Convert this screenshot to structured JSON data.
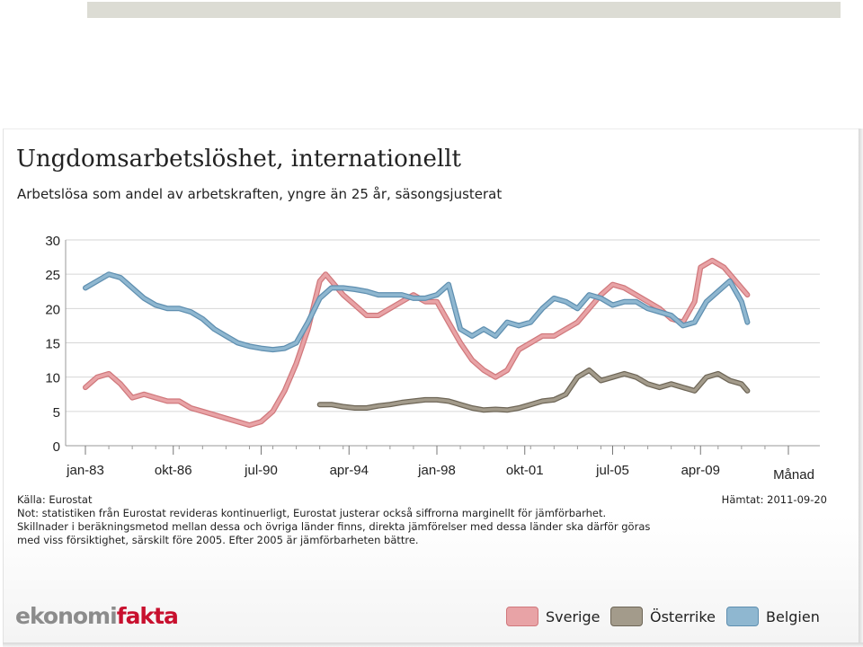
{
  "header": {
    "title": "Ungdomsarbetslöshet, internationellt",
    "subtitle": "Arbetslösa som andel av arbetskraften, yngre än 25 år, säsongsjusterat"
  },
  "footer": {
    "source": "Källa: Eurostat",
    "fetched": "Hämtat: 2011-09-20",
    "notes": [
      "Not: statistiken från Eurostat revideras kontinuerligt, Eurostat justerar också siffrorna marginellt för jämförbarhet.",
      "Skillnader i beräkningsmetod mellan dessa och övriga länder finns, direkta jämförelser med dessa länder ska därför göras",
      "med viss försiktighet, särskilt före 2005. Efter 2005 är jämförbarheten bättre."
    ],
    "logo_part1": "ekonomi",
    "logo_part2": "fakta"
  },
  "colors": {
    "sverige": "#e8a3a6",
    "sverige_edge": "#d0787c",
    "osterrike": "#a39b8b",
    "osterrike_edge": "#6e6657",
    "belgien": "#8fb7d0",
    "belgien_edge": "#5f8fb0",
    "grid": "#d6d6d6",
    "axis": "#999999",
    "logo_grey": "#8c8c8c",
    "logo_red": "#c8102e"
  },
  "chart_data": {
    "type": "line",
    "title": "Ungdomsarbetslöshet, internationellt",
    "subtitle": "Arbetslösa som andel av arbetskraften, yngre än 25 år, säsongsjusterat",
    "xlabel": "Månad",
    "ylabel": "",
    "ylim": [
      0,
      30
    ],
    "xlim": [
      "1983-01",
      "2013-01"
    ],
    "y_ticks": [
      0,
      5,
      10,
      15,
      20,
      25,
      30
    ],
    "x_ticks": [
      "jan-83",
      "okt-86",
      "jul-90",
      "apr-94",
      "jan-98",
      "okt-01",
      "jul-05",
      "apr-09"
    ],
    "grid": true,
    "legend_position": "bottom-right",
    "series": [
      {
        "name": "Sverige",
        "key": "sverige",
        "x": [
          "1983-01",
          "1983-07",
          "1984-01",
          "1984-07",
          "1985-01",
          "1985-07",
          "1986-01",
          "1986-07",
          "1987-01",
          "1987-07",
          "1988-01",
          "1988-07",
          "1989-01",
          "1989-07",
          "1990-01",
          "1990-07",
          "1991-01",
          "1991-07",
          "1992-01",
          "1992-07",
          "1993-01",
          "1993-04",
          "1993-07",
          "1994-01",
          "1994-07",
          "1995-01",
          "1995-07",
          "1996-01",
          "1996-07",
          "1997-01",
          "1997-07",
          "1998-01",
          "1998-07",
          "1999-01",
          "1999-07",
          "2000-01",
          "2000-07",
          "2001-01",
          "2001-07",
          "2002-01",
          "2002-07",
          "2003-01",
          "2003-07",
          "2004-01",
          "2004-07",
          "2005-01",
          "2005-07",
          "2006-01",
          "2006-07",
          "2007-01",
          "2007-07",
          "2008-01",
          "2008-07",
          "2009-01",
          "2009-04",
          "2009-10",
          "2010-04",
          "2010-10",
          "2011-04"
        ],
        "values": [
          8.5,
          10,
          10.5,
          9,
          7,
          7.5,
          7,
          6.5,
          6.5,
          5.5,
          5,
          4.5,
          4,
          3.5,
          3,
          3.5,
          5,
          8,
          12,
          17,
          24,
          25,
          24,
          22,
          20.5,
          19,
          19,
          20,
          21,
          22,
          21,
          21,
          18,
          15,
          12.5,
          11,
          10,
          11,
          14,
          15,
          16,
          16,
          17,
          18,
          20,
          22,
          23.5,
          23,
          22,
          21,
          20,
          18.5,
          18,
          21,
          26,
          27,
          26,
          24,
          22
        ]
      },
      {
        "name": "Österrike",
        "key": "osterrike",
        "x": [
          "1993-01",
          "1993-07",
          "1994-01",
          "1994-07",
          "1995-01",
          "1995-07",
          "1996-01",
          "1996-07",
          "1997-01",
          "1997-07",
          "1998-01",
          "1998-07",
          "1999-01",
          "1999-07",
          "2000-01",
          "2000-07",
          "2001-01",
          "2001-07",
          "2002-01",
          "2002-07",
          "2003-01",
          "2003-07",
          "2004-01",
          "2004-07",
          "2005-01",
          "2005-07",
          "2006-01",
          "2006-07",
          "2007-01",
          "2007-07",
          "2008-01",
          "2008-07",
          "2009-01",
          "2009-07",
          "2010-01",
          "2010-07",
          "2011-01",
          "2011-04"
        ],
        "values": [
          6,
          6,
          5.7,
          5.5,
          5.5,
          5.8,
          6,
          6.3,
          6.5,
          6.7,
          6.7,
          6.5,
          6,
          5.5,
          5.2,
          5.3,
          5.2,
          5.5,
          6,
          6.5,
          6.7,
          7.5,
          10,
          11,
          9.5,
          10,
          10.5,
          10,
          9,
          8.5,
          9,
          8.5,
          8,
          10,
          10.5,
          9.5,
          9,
          8
        ]
      },
      {
        "name": "Belgien",
        "key": "belgien",
        "x": [
          "1983-01",
          "1983-07",
          "1984-01",
          "1984-07",
          "1985-01",
          "1985-07",
          "1986-01",
          "1986-07",
          "1987-01",
          "1987-07",
          "1988-01",
          "1988-07",
          "1989-01",
          "1989-07",
          "1990-01",
          "1990-07",
          "1991-01",
          "1991-07",
          "1992-01",
          "1992-07",
          "1993-01",
          "1993-07",
          "1994-01",
          "1994-07",
          "1995-01",
          "1995-07",
          "1996-01",
          "1996-07",
          "1997-01",
          "1997-07",
          "1998-01",
          "1998-07",
          "1999-01",
          "1999-07",
          "2000-01",
          "2000-07",
          "2001-01",
          "2001-07",
          "2002-01",
          "2002-07",
          "2003-01",
          "2003-07",
          "2004-01",
          "2004-07",
          "2005-01",
          "2005-07",
          "2006-01",
          "2006-07",
          "2007-01",
          "2007-07",
          "2008-01",
          "2008-07",
          "2009-01",
          "2009-07",
          "2010-01",
          "2010-07",
          "2011-01",
          "2011-04"
        ],
        "values": [
          23,
          24,
          25,
          24.5,
          23,
          21.5,
          20.5,
          20,
          20,
          19.5,
          18.5,
          17,
          16,
          15,
          14.5,
          14.2,
          14,
          14.2,
          15,
          18,
          21.5,
          23,
          23,
          22.8,
          22.5,
          22,
          22,
          22,
          21.5,
          21.5,
          22,
          23.5,
          17,
          16,
          17,
          16,
          18,
          17.5,
          18,
          20,
          21.5,
          21,
          20,
          22,
          21.5,
          20.5,
          21,
          21,
          20,
          19.5,
          19,
          17.5,
          18,
          21,
          22.5,
          24,
          21,
          18
        ]
      }
    ]
  }
}
